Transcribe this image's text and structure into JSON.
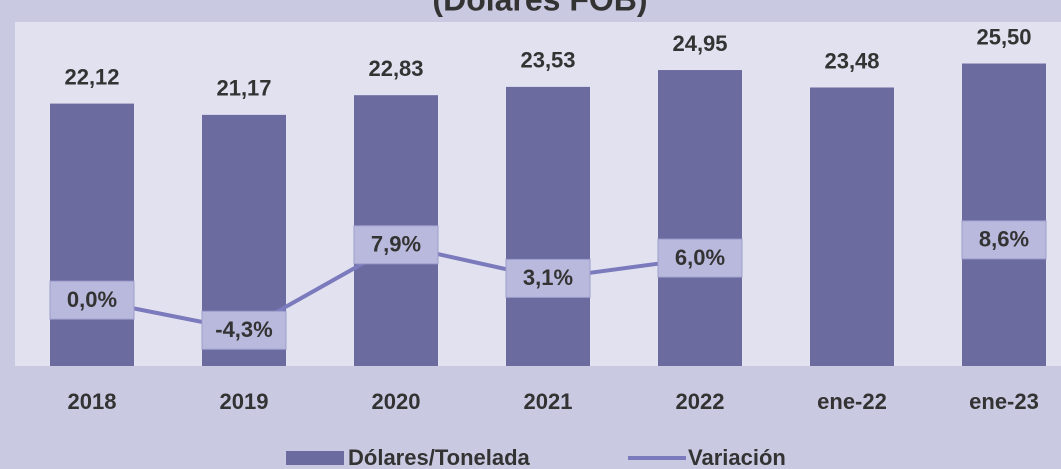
{
  "chart_data": {
    "type": "bar",
    "title": "(Dólares FOB)",
    "categories": [
      "2018",
      "2019",
      "2020",
      "2021",
      "2022",
      "ene-22",
      "ene-23"
    ],
    "series": [
      {
        "name": "Dólares/Tonelada",
        "color": "#6b6ba0",
        "values": [
          22.12,
          21.17,
          22.83,
          23.53,
          24.95,
          23.48,
          25.5
        ],
        "value_labels": [
          "22,12",
          "21,17",
          "22,83",
          "23,53",
          "24,95",
          "23,48",
          "25,50"
        ]
      },
      {
        "name": "Variación",
        "type": "line",
        "axis": "y2",
        "color": "#7a7abd",
        "values": [
          0.0,
          -4.3,
          7.9,
          3.1,
          6.0,
          null,
          8.6
        ],
        "value_labels": [
          "0,0%",
          "-4,3%",
          "7,9%",
          "3,1%",
          "6,0%",
          null,
          "8,6%"
        ]
      }
    ],
    "ylim": [
      0,
      29
    ],
    "y2lim": [
      -9.4,
      39.7
    ]
  }
}
